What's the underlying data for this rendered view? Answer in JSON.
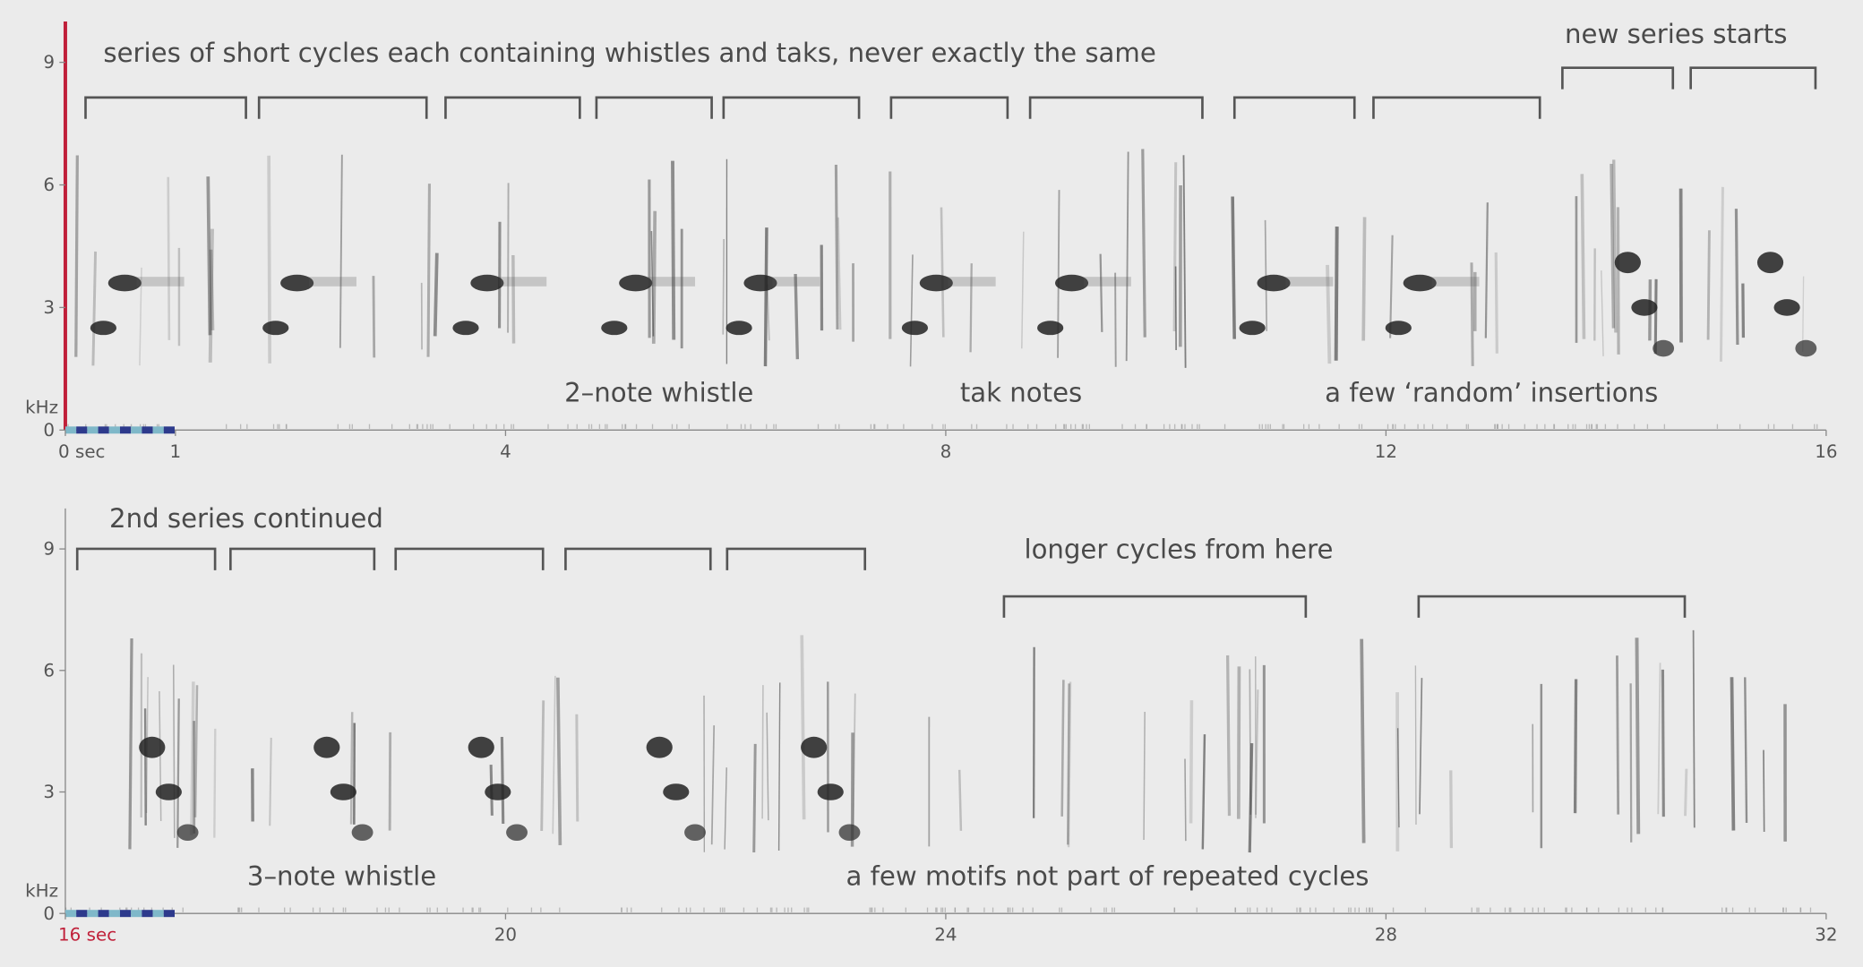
{
  "chart_data": [
    {
      "type": "spectrogram",
      "y_label": "kHz",
      "xlim": [
        0,
        16
      ],
      "ylim": [
        0,
        10
      ],
      "yticks": [
        0,
        3,
        6,
        9
      ],
      "xticks": [
        {
          "value": 0,
          "label": "0 sec"
        },
        1,
        4,
        8,
        12,
        16
      ],
      "annotations": [
        "series of short cycles each containing whistles and taks, never exactly the same",
        "new series starts",
        "2–note whistle",
        "tak notes",
        "a few ‘random’ insertions"
      ]
    },
    {
      "type": "spectrogram",
      "y_label": "kHz",
      "xlim": [
        16,
        32
      ],
      "ylim": [
        0,
        10
      ],
      "yticks": [
        0,
        3,
        6,
        9
      ],
      "xticks": [
        {
          "value": 16,
          "label": "16 sec"
        },
        20,
        24,
        28,
        32
      ],
      "annotations": [
        "2nd series continued",
        "longer cycles from here",
        "3–note whistle",
        "a few motifs not part of repeated cycles"
      ]
    }
  ]
}
